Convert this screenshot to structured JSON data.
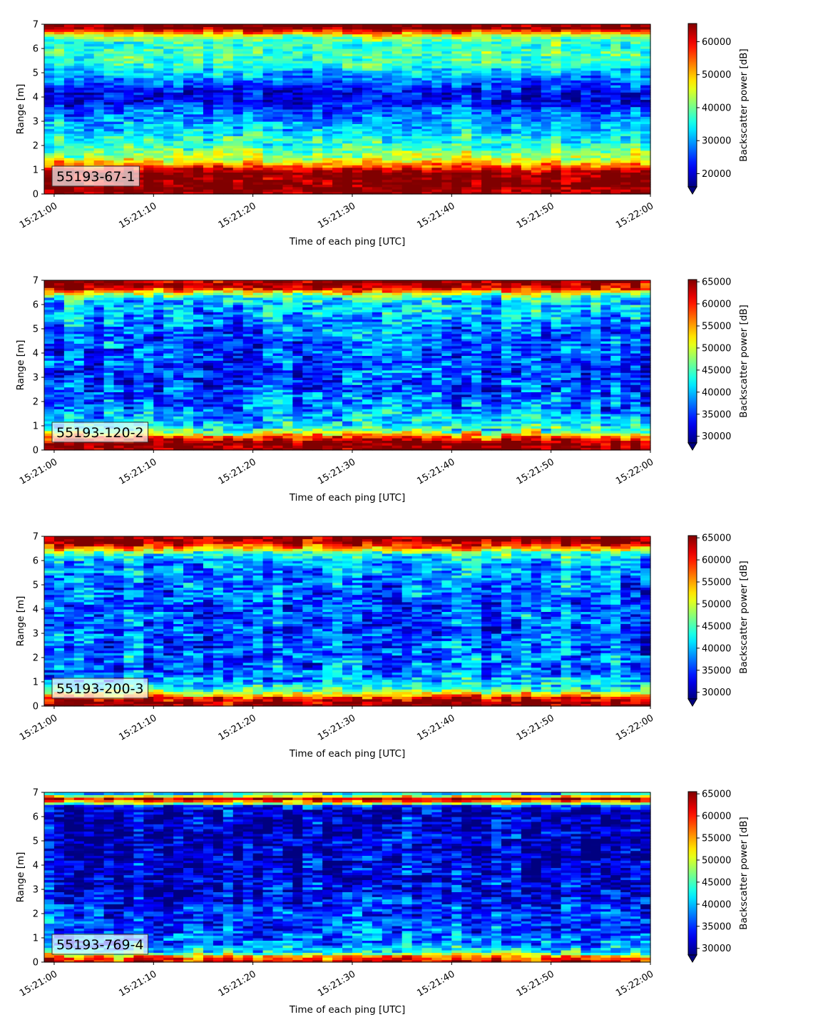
{
  "colormap": "jet",
  "chart_data": [
    {
      "type": "heatmap",
      "label": "55193-67-1",
      "xlabel": "Time of each ping [UTC]",
      "ylabel": "Range [m]",
      "colorbar_label": "Backscatter power [dB]",
      "x_range": [
        "15:20:59",
        "15:22:00"
      ],
      "x_ticks": [
        "15:21:00",
        "15:21:10",
        "15:21:20",
        "15:21:30",
        "15:21:40",
        "15:21:50",
        "15:22:00"
      ],
      "ylim": [
        0,
        7
      ],
      "y_ticks": [
        0,
        1,
        2,
        3,
        4,
        5,
        6,
        7
      ],
      "clim": [
        16000,
        65500
      ],
      "colorbar_ticks": [
        20000,
        30000,
        40000,
        50000,
        60000
      ],
      "profile": [
        {
          "range": 0.1,
          "value": 65535
        },
        {
          "range": 0.3,
          "value": 65535
        },
        {
          "range": 0.6,
          "value": 65535
        },
        {
          "range": 0.9,
          "value": 65535
        },
        {
          "range": 1.1,
          "value": 57000
        },
        {
          "range": 1.3,
          "value": 50000
        },
        {
          "range": 1.5,
          "value": 44000
        },
        {
          "range": 1.75,
          "value": 41000
        },
        {
          "range": 2.0,
          "value": 36000
        },
        {
          "range": 2.3,
          "value": 36000
        },
        {
          "range": 2.6,
          "value": 32000
        },
        {
          "range": 3.0,
          "value": 30000
        },
        {
          "range": 3.4,
          "value": 27000
        },
        {
          "range": 3.8,
          "value": 22000
        },
        {
          "range": 4.2,
          "value": 21000
        },
        {
          "range": 4.6,
          "value": 26000
        },
        {
          "range": 5.0,
          "value": 31000
        },
        {
          "range": 5.4,
          "value": 37000
        },
        {
          "range": 5.8,
          "value": 38000
        },
        {
          "range": 6.2,
          "value": 37000
        },
        {
          "range": 6.5,
          "value": 42000
        },
        {
          "range": 6.7,
          "value": 55000
        },
        {
          "range": 6.85,
          "value": 65535
        },
        {
          "range": 7.0,
          "value": 65535
        }
      ]
    },
    {
      "type": "heatmap",
      "label": "55193-120-2",
      "xlabel": "Time of each ping [UTC]",
      "ylabel": "Range [m]",
      "colorbar_label": "Backscatter power [dB]",
      "x_range": [
        "15:20:59",
        "15:22:00"
      ],
      "x_ticks": [
        "15:21:00",
        "15:21:10",
        "15:21:20",
        "15:21:30",
        "15:21:40",
        "15:21:50",
        "15:22:00"
      ],
      "ylim": [
        0,
        7
      ],
      "y_ticks": [
        0,
        1,
        2,
        3,
        4,
        5,
        6,
        7
      ],
      "clim": [
        28500,
        65500
      ],
      "colorbar_ticks": [
        30000,
        35000,
        40000,
        45000,
        50000,
        55000,
        60000,
        65000
      ],
      "profile": [
        {
          "range": 0.1,
          "value": 65535
        },
        {
          "range": 0.3,
          "value": 65535
        },
        {
          "range": 0.5,
          "value": 60000
        },
        {
          "range": 0.7,
          "value": 50000
        },
        {
          "range": 0.9,
          "value": 44000
        },
        {
          "range": 1.2,
          "value": 40000
        },
        {
          "range": 1.6,
          "value": 38500
        },
        {
          "range": 2.0,
          "value": 37000
        },
        {
          "range": 2.5,
          "value": 36000
        },
        {
          "range": 3.0,
          "value": 35500
        },
        {
          "range": 3.5,
          "value": 35500
        },
        {
          "range": 4.0,
          "value": 36000
        },
        {
          "range": 4.5,
          "value": 36500
        },
        {
          "range": 5.0,
          "value": 37500
        },
        {
          "range": 5.5,
          "value": 39000
        },
        {
          "range": 6.0,
          "value": 40000
        },
        {
          "range": 6.3,
          "value": 43000
        },
        {
          "range": 6.5,
          "value": 52000
        },
        {
          "range": 6.7,
          "value": 63000
        },
        {
          "range": 6.9,
          "value": 65535
        },
        {
          "range": 7.0,
          "value": 65535
        }
      ]
    },
    {
      "type": "heatmap",
      "label": "55193-200-3",
      "xlabel": "Time of each ping [UTC]",
      "ylabel": "Range [m]",
      "colorbar_label": "Backscatter power [dB]",
      "x_range": [
        "15:20:59",
        "15:22:00"
      ],
      "x_ticks": [
        "15:21:00",
        "15:21:10",
        "15:21:20",
        "15:21:30",
        "15:21:40",
        "15:21:50",
        "15:22:00"
      ],
      "ylim": [
        0,
        7
      ],
      "y_ticks": [
        0,
        1,
        2,
        3,
        4,
        5,
        6,
        7
      ],
      "clim": [
        28500,
        65500
      ],
      "colorbar_ticks": [
        30000,
        35000,
        40000,
        45000,
        50000,
        55000,
        60000,
        65000
      ],
      "profile": [
        {
          "range": 0.1,
          "value": 65535
        },
        {
          "range": 0.3,
          "value": 63000
        },
        {
          "range": 0.5,
          "value": 52000
        },
        {
          "range": 0.7,
          "value": 45000
        },
        {
          "range": 1.0,
          "value": 40000
        },
        {
          "range": 1.5,
          "value": 37500
        },
        {
          "range": 2.0,
          "value": 37000
        },
        {
          "range": 2.5,
          "value": 36500
        },
        {
          "range": 3.0,
          "value": 36000
        },
        {
          "range": 3.5,
          "value": 36000
        },
        {
          "range": 3.8,
          "value": 37500
        },
        {
          "range": 4.2,
          "value": 36000
        },
        {
          "range": 4.6,
          "value": 37000
        },
        {
          "range": 5.0,
          "value": 37500
        },
        {
          "range": 5.5,
          "value": 38500
        },
        {
          "range": 6.0,
          "value": 40000
        },
        {
          "range": 6.3,
          "value": 44000
        },
        {
          "range": 6.5,
          "value": 54000
        },
        {
          "range": 6.7,
          "value": 64000
        },
        {
          "range": 6.9,
          "value": 65535
        },
        {
          "range": 7.0,
          "value": 65535
        }
      ]
    },
    {
      "type": "heatmap",
      "label": "55193-769-4",
      "xlabel": "Time of each ping [UTC]",
      "ylabel": "Range [m]",
      "colorbar_label": "Backscatter power [dB]",
      "x_range": [
        "15:20:59",
        "15:22:00"
      ],
      "x_ticks": [
        "15:21:00",
        "15:21:10",
        "15:21:20",
        "15:21:30",
        "15:21:40",
        "15:21:50",
        "15:22:00"
      ],
      "ylim": [
        0,
        7
      ],
      "y_ticks": [
        0,
        1,
        2,
        3,
        4,
        5,
        6,
        7
      ],
      "clim": [
        28500,
        65500
      ],
      "colorbar_ticks": [
        30000,
        35000,
        40000,
        45000,
        50000,
        55000,
        60000,
        65000
      ],
      "profile": [
        {
          "range": 0.1,
          "value": 60000
        },
        {
          "range": 0.25,
          "value": 55000
        },
        {
          "range": 0.4,
          "value": 44000
        },
        {
          "range": 0.6,
          "value": 40000
        },
        {
          "range": 0.9,
          "value": 37500
        },
        {
          "range": 1.3,
          "value": 36000
        },
        {
          "range": 1.8,
          "value": 35000
        },
        {
          "range": 2.3,
          "value": 34000
        },
        {
          "range": 2.8,
          "value": 33000
        },
        {
          "range": 3.5,
          "value": 32000
        },
        {
          "range": 4.5,
          "value": 31500
        },
        {
          "range": 5.5,
          "value": 31000
        },
        {
          "range": 6.2,
          "value": 31000
        },
        {
          "range": 6.45,
          "value": 34000
        },
        {
          "range": 6.6,
          "value": 55000
        },
        {
          "range": 6.75,
          "value": 63000
        },
        {
          "range": 6.9,
          "value": 45000
        },
        {
          "range": 7.0,
          "value": 40000
        }
      ]
    }
  ]
}
